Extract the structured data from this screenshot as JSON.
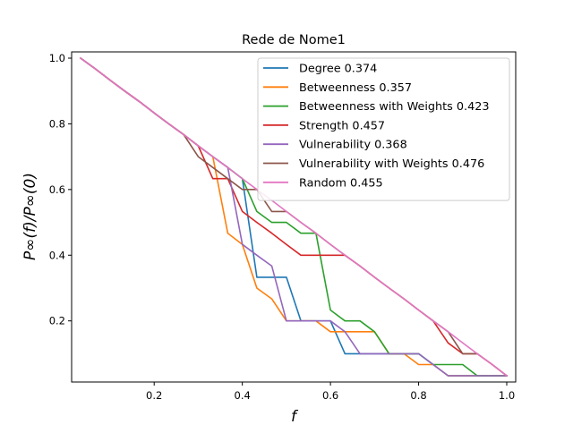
{
  "chart_data": {
    "type": "line",
    "title": "Rede de Nome1",
    "xlabel": "f",
    "ylabel": "P∞(f)/P∞(0)",
    "xlim": [
      0.0,
      1.0
    ],
    "ylim": [
      0.0,
      1.0
    ],
    "xticks": [
      0.2,
      0.4,
      0.6,
      0.8,
      1.0
    ],
    "yticks": [
      0.2,
      0.4,
      0.6,
      0.8,
      1.0
    ],
    "xticklabels": [
      "0.2",
      "0.4",
      "0.6",
      "0.8",
      "1.0"
    ],
    "yticklabels": [
      "0.2",
      "0.4",
      "0.6",
      "0.8",
      "1.0"
    ],
    "grid": false,
    "legend_position": "top-right",
    "series": [
      {
        "name": "Degree 0.374",
        "color": "#1f77b4",
        "x": [
          0.033,
          0.067,
          0.1,
          0.133,
          0.167,
          0.2,
          0.233,
          0.267,
          0.3,
          0.333,
          0.367,
          0.4,
          0.433,
          0.467,
          0.5,
          0.533,
          0.567,
          0.6,
          0.633,
          0.667,
          0.7,
          0.733,
          0.767,
          0.8,
          0.833,
          0.867,
          0.9,
          0.933,
          0.967,
          1.0
        ],
        "y": [
          1.0,
          0.967,
          0.933,
          0.9,
          0.867,
          0.833,
          0.8,
          0.767,
          0.733,
          0.7,
          0.667,
          0.633,
          0.333,
          0.333,
          0.333,
          0.2,
          0.2,
          0.2,
          0.1,
          0.1,
          0.1,
          0.1,
          0.1,
          0.1,
          0.067,
          0.033,
          0.033,
          0.033,
          0.033,
          0.033
        ]
      },
      {
        "name": "Betweenness 0.357",
        "color": "#ff7f0e",
        "x": [
          0.033,
          0.067,
          0.1,
          0.133,
          0.167,
          0.2,
          0.233,
          0.267,
          0.3,
          0.333,
          0.367,
          0.4,
          0.433,
          0.467,
          0.5,
          0.533,
          0.567,
          0.6,
          0.633,
          0.667,
          0.7,
          0.733,
          0.767,
          0.8,
          0.833,
          0.867,
          0.9,
          0.933,
          0.967,
          1.0
        ],
        "y": [
          1.0,
          0.967,
          0.933,
          0.9,
          0.867,
          0.833,
          0.8,
          0.767,
          0.733,
          0.7,
          0.467,
          0.433,
          0.3,
          0.267,
          0.2,
          0.2,
          0.2,
          0.167,
          0.167,
          0.167,
          0.167,
          0.1,
          0.1,
          0.067,
          0.067,
          0.033,
          0.033,
          0.033,
          0.033,
          0.033
        ]
      },
      {
        "name": "Betweenness with Weights 0.423",
        "color": "#2ca02c",
        "x": [
          0.033,
          0.067,
          0.1,
          0.133,
          0.167,
          0.2,
          0.233,
          0.267,
          0.3,
          0.333,
          0.367,
          0.4,
          0.433,
          0.467,
          0.5,
          0.533,
          0.567,
          0.6,
          0.633,
          0.667,
          0.7,
          0.733,
          0.767,
          0.8,
          0.833,
          0.867,
          0.9,
          0.933,
          0.967,
          1.0
        ],
        "y": [
          1.0,
          0.967,
          0.933,
          0.9,
          0.867,
          0.833,
          0.8,
          0.767,
          0.733,
          0.7,
          0.667,
          0.633,
          0.533,
          0.5,
          0.5,
          0.467,
          0.467,
          0.233,
          0.2,
          0.2,
          0.167,
          0.1,
          0.1,
          0.1,
          0.067,
          0.067,
          0.067,
          0.033,
          0.033,
          0.033
        ]
      },
      {
        "name": "Strength 0.457",
        "color": "#d62728",
        "x": [
          0.033,
          0.067,
          0.1,
          0.133,
          0.167,
          0.2,
          0.233,
          0.267,
          0.3,
          0.333,
          0.367,
          0.4,
          0.433,
          0.467,
          0.5,
          0.533,
          0.567,
          0.6,
          0.633,
          0.667,
          0.7,
          0.733,
          0.767,
          0.8,
          0.833,
          0.867,
          0.9,
          0.933,
          0.967,
          1.0
        ],
        "y": [
          1.0,
          0.967,
          0.933,
          0.9,
          0.867,
          0.833,
          0.8,
          0.767,
          0.733,
          0.633,
          0.633,
          0.533,
          0.5,
          0.467,
          0.433,
          0.4,
          0.4,
          0.4,
          0.4,
          0.367,
          0.333,
          0.3,
          0.267,
          0.233,
          0.2,
          0.133,
          0.1,
          0.1,
          0.067,
          0.033
        ]
      },
      {
        "name": "Vulnerability 0.368",
        "color": "#9467bd",
        "x": [
          0.033,
          0.067,
          0.1,
          0.133,
          0.167,
          0.2,
          0.233,
          0.267,
          0.3,
          0.333,
          0.367,
          0.4,
          0.433,
          0.467,
          0.5,
          0.533,
          0.567,
          0.6,
          0.633,
          0.667,
          0.7,
          0.733,
          0.767,
          0.8,
          0.833,
          0.867,
          0.9,
          0.933,
          0.967,
          1.0
        ],
        "y": [
          1.0,
          0.967,
          0.933,
          0.9,
          0.867,
          0.833,
          0.8,
          0.767,
          0.733,
          0.7,
          0.667,
          0.433,
          0.4,
          0.367,
          0.2,
          0.2,
          0.2,
          0.2,
          0.167,
          0.1,
          0.1,
          0.1,
          0.1,
          0.1,
          0.067,
          0.033,
          0.033,
          0.033,
          0.033,
          0.033
        ]
      },
      {
        "name": "Vulnerability with Weights 0.476",
        "color": "#8c564b",
        "x": [
          0.033,
          0.067,
          0.1,
          0.133,
          0.167,
          0.2,
          0.233,
          0.267,
          0.3,
          0.333,
          0.367,
          0.4,
          0.433,
          0.467,
          0.5,
          0.533,
          0.567,
          0.6,
          0.633,
          0.667,
          0.7,
          0.733,
          0.767,
          0.8,
          0.833,
          0.867,
          0.9,
          0.933,
          0.967,
          1.0
        ],
        "y": [
          1.0,
          0.967,
          0.933,
          0.9,
          0.867,
          0.833,
          0.8,
          0.767,
          0.7,
          0.667,
          0.633,
          0.6,
          0.6,
          0.533,
          0.533,
          0.5,
          0.467,
          0.433,
          0.4,
          0.367,
          0.333,
          0.3,
          0.267,
          0.233,
          0.2,
          0.167,
          0.1,
          0.1,
          0.067,
          0.033
        ]
      },
      {
        "name": "Random 0.455",
        "color": "#e377c2",
        "x": [
          0.033,
          0.067,
          0.1,
          0.133,
          0.167,
          0.2,
          0.233,
          0.267,
          0.3,
          0.333,
          0.367,
          0.4,
          0.433,
          0.467,
          0.5,
          0.533,
          0.567,
          0.6,
          0.633,
          0.667,
          0.7,
          0.733,
          0.767,
          0.8,
          0.833,
          0.867,
          0.9,
          0.933,
          0.967,
          1.0
        ],
        "y": [
          1.0,
          0.967,
          0.933,
          0.9,
          0.867,
          0.833,
          0.8,
          0.767,
          0.733,
          0.7,
          0.667,
          0.633,
          0.6,
          0.567,
          0.533,
          0.5,
          0.467,
          0.433,
          0.4,
          0.367,
          0.333,
          0.3,
          0.267,
          0.233,
          0.2,
          0.167,
          0.133,
          0.1,
          0.067,
          0.033
        ]
      }
    ]
  }
}
